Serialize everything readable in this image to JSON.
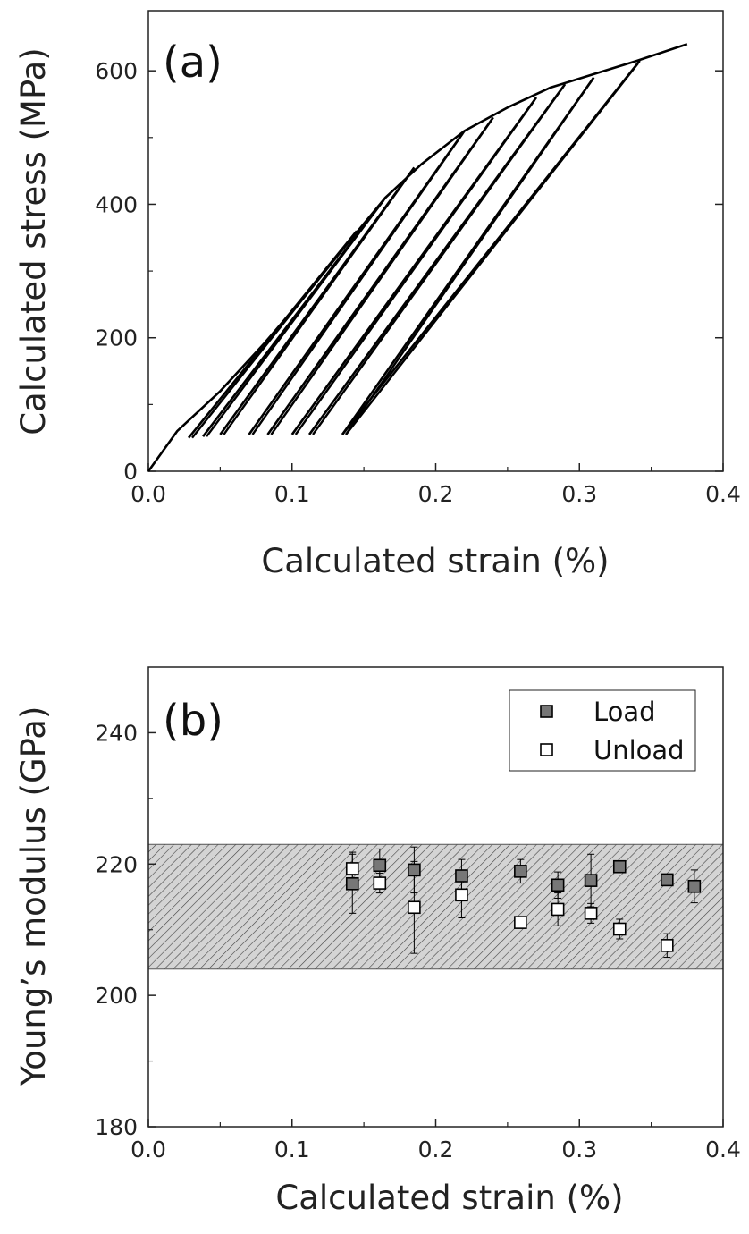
{
  "chart_data": [
    {
      "type": "line",
      "panel_label": "(a)",
      "xlabel": "Calculated strain (%)",
      "ylabel": "Calculated stress (MPa)",
      "xlim": [
        0.0,
        0.4
      ],
      "ylim": [
        0,
        690
      ],
      "x_ticks": [
        "0.0",
        "0.1",
        "0.2",
        "0.3",
        "0.4"
      ],
      "y_ticks": [
        "0",
        "200",
        "400",
        "600"
      ],
      "grid": false,
      "color": "#000000",
      "envelope": {
        "x": [
          0.0,
          0.02,
          0.05,
          0.08,
          0.11,
          0.14,
          0.165,
          0.19,
          0.22,
          0.25,
          0.28,
          0.31,
          0.34,
          0.375
        ],
        "y": [
          0,
          60,
          120,
          190,
          265,
          345,
          410,
          460,
          510,
          545,
          575,
          595,
          615,
          640
        ]
      },
      "unload_reload_cycles": [
        {
          "peak_strain": 0.145,
          "peak_stress": 360,
          "min_strain": 0.028,
          "min_stress": 50
        },
        {
          "peak_strain": 0.165,
          "peak_stress": 410,
          "min_strain": 0.038,
          "min_stress": 52
        },
        {
          "peak_strain": 0.185,
          "peak_stress": 455,
          "min_strain": 0.05,
          "min_stress": 55
        },
        {
          "peak_strain": 0.22,
          "peak_stress": 510,
          "min_strain": 0.07,
          "min_stress": 55
        },
        {
          "peak_strain": 0.24,
          "peak_stress": 530,
          "min_strain": 0.083,
          "min_stress": 55
        },
        {
          "peak_strain": 0.27,
          "peak_stress": 560,
          "min_strain": 0.1,
          "min_stress": 55
        },
        {
          "peak_strain": 0.29,
          "peak_stress": 580,
          "min_strain": 0.112,
          "min_stress": 55
        },
        {
          "peak_strain": 0.31,
          "peak_stress": 590,
          "min_strain": 0.135,
          "min_stress": 55
        },
        {
          "peak_strain": 0.342,
          "peak_stress": 615,
          "min_strain": 0.135,
          "min_stress": 55
        }
      ]
    },
    {
      "type": "scatter",
      "panel_label": "(b)",
      "xlabel": "Calculated strain (%)",
      "ylabel": "Young’s modulus (GPa)",
      "xlim": [
        0.0,
        0.4
      ],
      "ylim": [
        180,
        250
      ],
      "x_ticks": [
        "0.0",
        "0.1",
        "0.2",
        "0.3",
        "0.4"
      ],
      "y_ticks": [
        "180",
        "200",
        "220",
        "240"
      ],
      "grid": false,
      "band": {
        "y_min": 204,
        "y_max": 223,
        "fill": "hatched gray"
      },
      "legend_position": "top-right",
      "series": [
        {
          "name": "Load",
          "marker": "filled-square",
          "color": "#777777",
          "x": [
            0.142,
            0.161,
            0.185,
            0.218,
            0.259,
            0.285,
            0.308,
            0.328,
            0.361,
            0.38
          ],
          "y": [
            217.0,
            219.8,
            219.1,
            218.2,
            218.9,
            216.8,
            217.5,
            219.6,
            217.6,
            216.6
          ],
          "yerr": [
            4.5,
            2.5,
            3.5,
            2.5,
            1.8,
            2.0,
            4.0,
            0.8,
            0.8,
            2.5
          ]
        },
        {
          "name": "Unload",
          "marker": "open-square",
          "color": "#ffffff",
          "x": [
            0.142,
            0.161,
            0.185,
            0.218,
            0.259,
            0.285,
            0.308,
            0.328,
            0.361
          ],
          "y": [
            219.3,
            217.1,
            213.4,
            215.3,
            211.1,
            213.1,
            212.5,
            210.1,
            207.6
          ],
          "yerr": [
            2.5,
            1.5,
            7.0,
            3.5,
            0.8,
            2.5,
            1.5,
            1.5,
            1.8
          ]
        }
      ]
    }
  ]
}
